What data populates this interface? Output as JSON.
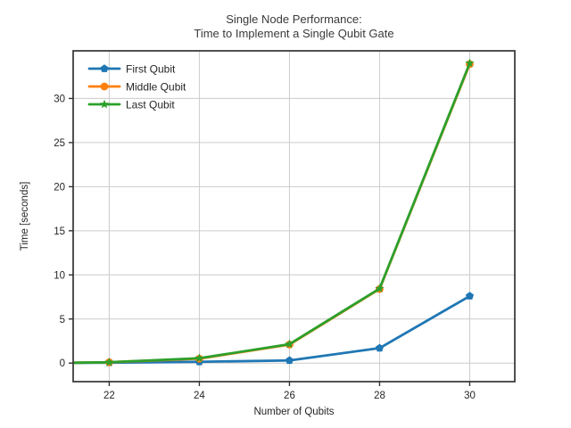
{
  "chart_data": {
    "type": "line",
    "title": "Single Node Performance:",
    "subtitle": "Time to Implement a Single Qubit Gate",
    "xlabel": "Number of Qubits",
    "ylabel": "Time [seconds]",
    "xlim": [
      21.2,
      31.0
    ],
    "ylim": [
      -2.1,
      35.4
    ],
    "xticks": [
      22,
      24,
      26,
      28,
      30
    ],
    "yticks": [
      0,
      5,
      10,
      15,
      20,
      25,
      30
    ],
    "grid": true,
    "legend_position": "upper-left",
    "x": [
      21,
      22,
      24,
      26,
      28,
      30
    ],
    "series": [
      {
        "name": "First Qubit",
        "color": "#1f77b4",
        "marker": "pentagon",
        "values": [
          0.02,
          0.05,
          0.15,
          0.3,
          1.7,
          7.6
        ]
      },
      {
        "name": "Middle Qubit",
        "color": "#ff7f0e",
        "marker": "circle",
        "values": [
          0.03,
          0.1,
          0.5,
          2.1,
          8.4,
          33.9
        ]
      },
      {
        "name": "Last Qubit",
        "color": "#2ca02c",
        "marker": "star",
        "values": [
          0.03,
          0.1,
          0.55,
          2.15,
          8.45,
          34.0
        ]
      }
    ],
    "colors": {
      "grid": "#cccccc",
      "spine": "#333333",
      "tick_text": "#262626",
      "title_text": "#3a3a3a",
      "background": "#ffffff"
    }
  }
}
